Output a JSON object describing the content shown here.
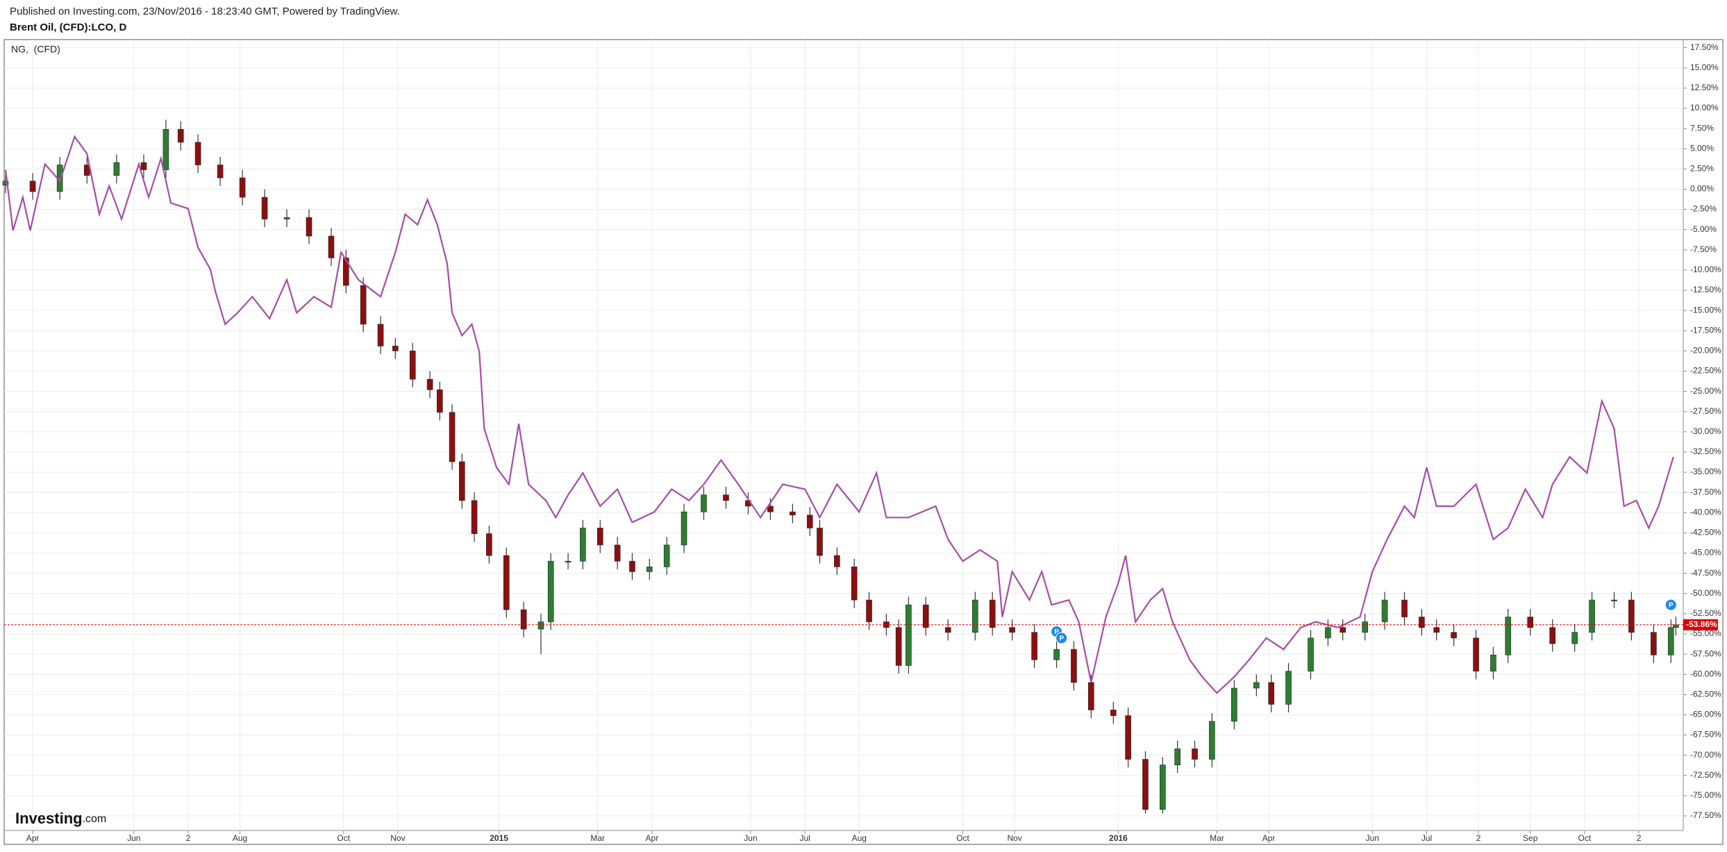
{
  "header": {
    "published": "Published on Investing.com, 23/Nov/2016 - 18:23:40 GMT, Powered by TradingView."
  },
  "logo": {
    "brand": "Investing",
    "suffix": ".com"
  },
  "chart_data": {
    "type": "candlestick",
    "title": "Brent Oil, (CFD):LCO, D",
    "xlim": [
      0,
      680
    ],
    "xticks": [
      {
        "value": 11,
        "label": "Apr"
      },
      {
        "value": 52,
        "label": "Jun"
      },
      {
        "value": 74,
        "label": "2"
      },
      {
        "value": 95,
        "label": "Aug"
      },
      {
        "value": 137,
        "label": "Oct"
      },
      {
        "value": 159,
        "label": "Nov"
      },
      {
        "value": 200,
        "label": "2015"
      },
      {
        "value": 240,
        "label": "Mar"
      },
      {
        "value": 262,
        "label": "Apr"
      },
      {
        "value": 302,
        "label": "Jun"
      },
      {
        "value": 324,
        "label": "Jul"
      },
      {
        "value": 346,
        "label": "Aug"
      },
      {
        "value": 388,
        "label": "Oct"
      },
      {
        "value": 409,
        "label": "Nov"
      },
      {
        "value": 451,
        "label": "2016"
      },
      {
        "value": 491,
        "label": "Mar"
      },
      {
        "value": 512,
        "label": "Apr"
      },
      {
        "value": 554,
        "label": "Jun"
      },
      {
        "value": 576,
        "label": "Jul"
      },
      {
        "value": 597,
        "label": "2"
      },
      {
        "value": 618,
        "label": "Sep"
      },
      {
        "value": 640,
        "label": "Oct"
      },
      {
        "value": 662,
        "label": "2"
      }
    ],
    "ylim": [
      -79.3,
      18.5
    ],
    "yticks": [
      {
        "value": 17.5,
        "label": "17.50%"
      },
      {
        "value": 15,
        "label": "15.00%"
      },
      {
        "value": 12.5,
        "label": "12.50%"
      },
      {
        "value": 10,
        "label": "10.00%"
      },
      {
        "value": 7.5,
        "label": "7.50%"
      },
      {
        "value": 5,
        "label": "5.00%"
      },
      {
        "value": 2.5,
        "label": "2.50%"
      },
      {
        "value": 0,
        "label": "0.00%"
      },
      {
        "value": -2.5,
        "label": "-2.50%"
      },
      {
        "value": -5,
        "label": "-5.00%"
      },
      {
        "value": -7.5,
        "label": "-7.50%"
      },
      {
        "value": -10,
        "label": "-10.00%"
      },
      {
        "value": -12.5,
        "label": "-12.50%"
      },
      {
        "value": -15,
        "label": "-15.00%"
      },
      {
        "value": -17.5,
        "label": "-17.50%"
      },
      {
        "value": -20,
        "label": "-20.00%"
      },
      {
        "value": -22.5,
        "label": "-22.50%"
      },
      {
        "value": -25,
        "label": "-25.00%"
      },
      {
        "value": -27.5,
        "label": "-27.50%"
      },
      {
        "value": -30,
        "label": "-30.00%"
      },
      {
        "value": -32.5,
        "label": "-32.50%"
      },
      {
        "value": -35,
        "label": "-35.00%"
      },
      {
        "value": -37.5,
        "label": "-37.50%"
      },
      {
        "value": -40,
        "label": "-40.00%"
      },
      {
        "value": -42.5,
        "label": "-42.50%"
      },
      {
        "value": -45,
        "label": "-45.00%"
      },
      {
        "value": -47.5,
        "label": "-47.50%"
      },
      {
        "value": -50,
        "label": "-50.00%"
      },
      {
        "value": -52.5,
        "label": "-52.50%"
      },
      {
        "value": -55,
        "label": "-55.00%"
      },
      {
        "value": -57.5,
        "label": "-57.50%"
      },
      {
        "value": -60,
        "label": "-60.00%"
      },
      {
        "value": -62.5,
        "label": "-62.50%"
      },
      {
        "value": -65,
        "label": "-65.00%"
      },
      {
        "value": -67.5,
        "label": "-67.50%"
      },
      {
        "value": -70,
        "label": "-70.00%"
      },
      {
        "value": -72.5,
        "label": "-72.50%"
      },
      {
        "value": -75,
        "label": "-75.00%"
      },
      {
        "value": -77.5,
        "label": "-77.50%"
      }
    ],
    "grid": true,
    "series": [
      {
        "type": "candlestick",
        "up_color": "#2e7d32",
        "down_color": "#8b1010",
        "x": [
          0,
          11,
          22,
          33,
          45,
          56,
          65,
          71,
          78,
          87,
          96,
          105,
          114,
          123,
          132,
          138,
          145,
          152,
          158,
          165,
          172,
          176,
          181,
          185,
          190,
          196,
          203,
          210,
          217,
          221,
          228,
          234,
          241,
          248,
          254,
          261,
          268,
          275,
          283,
          292,
          301,
          310,
          319,
          326,
          330,
          337,
          344,
          350,
          357,
          362,
          366,
          373,
          382,
          393,
          400,
          408,
          417,
          426,
          433,
          440,
          449,
          455,
          462,
          469,
          475,
          482,
          489,
          498,
          507,
          513,
          520,
          529,
          536,
          542,
          551,
          559,
          567,
          574,
          580,
          587,
          596,
          603,
          609,
          618,
          627,
          636,
          643,
          652,
          659,
          668,
          675,
          677
        ],
        "open": [
          0.5,
          1,
          -0.3,
          3,
          1.7,
          3.3,
          2.4,
          7.4,
          5.8,
          3,
          1.4,
          -1,
          -3.7,
          -3.5,
          -5.8,
          -8.5,
          -11.9,
          -16.7,
          -19.4,
          -20,
          -23.5,
          -24.8,
          -27.6,
          -33.7,
          -38.5,
          -42.6,
          -45.3,
          -52,
          -54.4,
          -53.5,
          -46,
          -46,
          -41.9,
          -44,
          -46,
          -47.3,
          -46.7,
          -44,
          -39.9,
          -37.8,
          -38.5,
          -39.2,
          -39.9,
          -40.3,
          -41.9,
          -45.3,
          -46.7,
          -50.8,
          -53.5,
          -54.2,
          -58.9,
          -51.4,
          -54.2,
          -54.8,
          -50.8,
          -54.2,
          -54.8,
          -58.2,
          -56.9,
          -61,
          -64.4,
          -65.1,
          -70.5,
          -76.7,
          -71.2,
          -69.2,
          -70.5,
          -65.8,
          -61.7,
          -61,
          -63.7,
          -59.6,
          -55.5,
          -54.2,
          -54.8,
          -53.5,
          -50.8,
          -52.9,
          -54.2,
          -54.8,
          -55.5,
          -59.6,
          -57.6,
          -52.9,
          -54.2,
          -56.2,
          -54.8,
          -50.8,
          -50.8,
          -54.8,
          -57.6,
          -54.2
        ],
        "high": [
          2,
          2,
          4,
          4,
          4.3,
          4.3,
          8.6,
          8.4,
          6.8,
          4,
          2.4,
          0,
          -2.5,
          -2.5,
          -4.8,
          -7.5,
          -10.9,
          -15.7,
          -18.4,
          -19,
          -22.5,
          -23.8,
          -26.6,
          -32.7,
          -37.5,
          -41.6,
          -44.3,
          -51,
          -52.5,
          -45,
          -45,
          -40.9,
          -40.9,
          -43,
          -45,
          -45.7,
          -43,
          -38.9,
          -36.8,
          -36.8,
          -37.5,
          -38.2,
          -38.9,
          -39.3,
          -40.9,
          -44.3,
          -45.7,
          -49.8,
          -52.5,
          -53.2,
          -50.4,
          -50.4,
          -53.2,
          -49.8,
          -49.8,
          -53.2,
          -53.8,
          -55.9,
          -55.9,
          -60,
          -63.4,
          -64.1,
          -69.5,
          -70.2,
          -68.2,
          -68.2,
          -64.8,
          -60.7,
          -60,
          -60,
          -58.6,
          -54.5,
          -53.2,
          -53.2,
          -52.5,
          -49.8,
          -49.8,
          -51.9,
          -53.2,
          -53.8,
          -54.5,
          -56.6,
          -51.9,
          -51.9,
          -53.2,
          -53.8,
          -49.8,
          -49.8,
          -49.8,
          -53.8,
          -53.2,
          -52.86
        ],
        "low": [
          -0.5,
          -1.3,
          -1.3,
          0.7,
          0.7,
          1.4,
          1.4,
          4.8,
          2,
          0.4,
          -2,
          -4.7,
          -4.7,
          -6.8,
          -9.5,
          -12.9,
          -17.7,
          -20.4,
          -21,
          -24.5,
          -25.8,
          -28.6,
          -34.7,
          -39.5,
          -43.6,
          -46.3,
          -53,
          -55.4,
          -57.5,
          -54.5,
          -47,
          -47,
          -45,
          -47,
          -48.3,
          -48.3,
          -47.7,
          -45,
          -40.9,
          -39.5,
          -40.2,
          -40.9,
          -41.3,
          -42.9,
          -46.3,
          -47.7,
          -51.8,
          -54.5,
          -55.2,
          -59.9,
          -59.9,
          -55.2,
          -55.8,
          -55.8,
          -55.2,
          -55.8,
          -59.2,
          -59.2,
          -62,
          -65.4,
          -66.1,
          -71.5,
          -77.2,
          -77.2,
          -72.2,
          -71.5,
          -71.5,
          -66.8,
          -62.7,
          -64.7,
          -64.7,
          -60.6,
          -56.5,
          -55.8,
          -55.8,
          -54.5,
          -53.9,
          -55.2,
          -55.8,
          -56.5,
          -60.6,
          -60.6,
          -58.6,
          -55.2,
          -57.2,
          -57.2,
          -55.8,
          -51.8,
          -55.8,
          -58.6,
          -58.6,
          -55.2
        ],
        "close": [
          1,
          -0.3,
          3,
          1.7,
          3.3,
          2.4,
          7.4,
          5.8,
          3,
          1.4,
          -1,
          -3.7,
          -3.5,
          -5.8,
          -8.5,
          -11.9,
          -16.7,
          -19.4,
          -20,
          -23.5,
          -24.8,
          -27.6,
          -33.7,
          -38.5,
          -42.6,
          -45.3,
          -52,
          -54.4,
          -53.5,
          -46,
          -46,
          -41.9,
          -44,
          -46,
          -47.3,
          -46.7,
          -44,
          -39.9,
          -37.8,
          -38.5,
          -39.2,
          -39.9,
          -40.3,
          -41.9,
          -45.3,
          -46.7,
          -50.8,
          -53.5,
          -54.2,
          -58.9,
          -51.4,
          -54.2,
          -54.8,
          -50.8,
          -54.2,
          -54.8,
          -58.2,
          -56.9,
          -61,
          -64.4,
          -65.1,
          -70.5,
          -76.7,
          -71.2,
          -69.2,
          -70.5,
          -65.8,
          -61.7,
          -61,
          -63.7,
          -59.6,
          -55.5,
          -54.2,
          -54.8,
          -53.5,
          -50.8,
          -52.9,
          -54.2,
          -54.8,
          -55.5,
          -59.6,
          -57.6,
          -52.9,
          -54.2,
          -56.2,
          -54.8,
          -50.8,
          -50.8,
          -54.8,
          -57.6,
          -54.2,
          -53.86
        ]
      },
      {
        "type": "line",
        "name": "NG,  (CFD)",
        "color": "#a64ca6",
        "x": [
          0,
          3,
          7,
          10,
          16,
          22,
          28,
          33,
          38,
          42,
          47,
          54,
          58,
          63,
          67,
          74,
          78,
          83,
          85,
          89,
          94,
          100,
          107,
          114,
          118,
          125,
          132,
          136,
          143,
          152,
          158,
          162,
          167,
          171,
          175,
          179,
          181,
          185,
          189,
          192,
          194,
          199,
          204,
          208,
          212,
          219,
          223,
          228,
          234,
          241,
          248,
          254,
          263,
          270,
          277,
          283,
          290,
          297,
          306,
          315,
          324,
          330,
          337,
          346,
          353,
          357,
          366,
          377,
          382,
          388,
          395,
          402,
          404,
          408,
          415,
          420,
          424,
          431,
          435,
          440,
          446,
          451,
          454,
          458,
          464,
          469,
          473,
          480,
          485,
          491,
          498,
          504,
          511,
          518,
          525,
          531,
          540,
          549,
          554,
          560,
          567,
          571,
          576,
          580,
          587,
          596,
          603,
          609,
          616,
          623,
          627,
          634,
          641,
          647,
          652,
          656,
          661,
          666,
          670,
          676
        ],
        "values": [
          2.4,
          -5.1,
          -1,
          -5.1,
          3.1,
          1,
          6.5,
          4.4,
          -3.1,
          0.4,
          -3.7,
          3.1,
          -1,
          3.8,
          -1.7,
          -2.4,
          -7.2,
          -9.9,
          -12.6,
          -16.7,
          -15.3,
          -13.3,
          -16,
          -11.2,
          -15.3,
          -13.3,
          -14.6,
          -7.8,
          -11.2,
          -13.3,
          -7.8,
          -3.1,
          -4.4,
          -1.3,
          -4.4,
          -9.2,
          -15.3,
          -18.1,
          -16.7,
          -20.1,
          -29.6,
          -34.4,
          -36.5,
          -29,
          -36.5,
          -38.5,
          -40.6,
          -37.8,
          -35.1,
          -39.2,
          -37.1,
          -41.2,
          -39.9,
          -37.1,
          -38.5,
          -36.5,
          -33.5,
          -36.5,
          -40.6,
          -36.5,
          -37.1,
          -40.6,
          -36.5,
          -39.9,
          -35.1,
          -40.6,
          -40.6,
          -39.2,
          -43.3,
          -46,
          -44.6,
          -46,
          -52.9,
          -47.3,
          -50.8,
          -47.3,
          -51.4,
          -50.8,
          -53.5,
          -61,
          -52.9,
          -48.7,
          -45.3,
          -53.5,
          -50.8,
          -49.4,
          -53.5,
          -58.2,
          -60.3,
          -62.3,
          -60.3,
          -58.2,
          -55.5,
          -56.9,
          -54.2,
          -53.5,
          -54.2,
          -52.9,
          -47.3,
          -43.3,
          -39.2,
          -40.6,
          -34.4,
          -39.2,
          -39.2,
          -36.5,
          -43.3,
          -41.9,
          -37.1,
          -40.6,
          -36.5,
          -33.1,
          -35.1,
          -26.2,
          -29.6,
          -39.2,
          -38.5,
          -41.9,
          -39.2,
          -33.1
        ]
      }
    ],
    "current_label": {
      "value": -53.86,
      "label": "-53.86%",
      "color": "#e00000"
    },
    "markers": [
      {
        "label": "P",
        "x": 426,
        "y": -54.7,
        "color": "#1e88e5"
      },
      {
        "label": "P",
        "x": 428,
        "y": -55.5,
        "color": "#1e88e5"
      },
      {
        "label": "P",
        "x": 675,
        "y": -51.4,
        "color": "#1e88e5"
      }
    ]
  }
}
